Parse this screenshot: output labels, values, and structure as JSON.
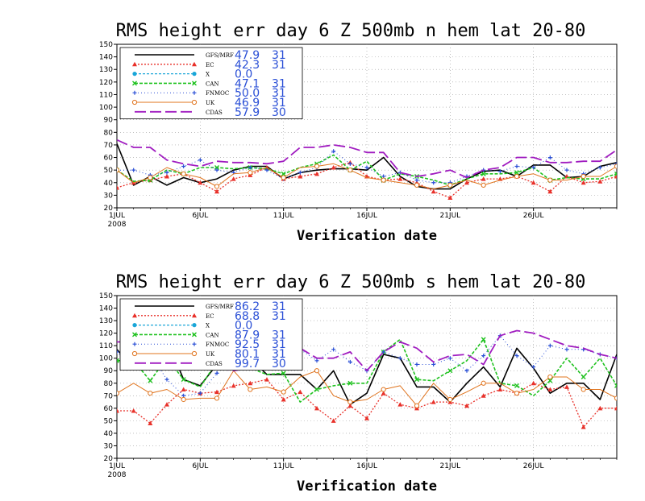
{
  "colors": {
    "GFS": "#000000",
    "EC": "#e8312a",
    "X": "#1aa6d8",
    "CAN": "#1fc21f",
    "FNMOC": "#2a4fd6",
    "UK": "#e0741e",
    "CDAS": "#a01cc0",
    "stats": "#2a4fd6"
  },
  "markers": {
    "GFS": "none",
    "EC": "triangle",
    "X": "circle",
    "CAN": "x",
    "FNMOC": "plus",
    "UK": "open-circle",
    "CDAS": "none"
  },
  "chart_data": [
    {
      "type": "line",
      "title": "RMS height err   day 6   Z 500mb   n hem   lat 20-80",
      "xlabel": "Verification date",
      "ylabel": "",
      "ylim": [
        20,
        150
      ],
      "yticks": [
        20,
        30,
        40,
        50,
        60,
        70,
        80,
        90,
        100,
        110,
        120,
        130,
        140,
        150
      ],
      "x_tick_labels": [
        "1JUL",
        "6JUL",
        "11JUL",
        "16JUL",
        "21JUL",
        "26JUL"
      ],
      "x_tick_days": [
        1,
        6,
        11,
        16,
        21,
        26
      ],
      "x_year_label": "2008",
      "xlim": [
        1,
        31
      ],
      "grid": true,
      "legend": [
        {
          "key": "GFS",
          "label": "GFS/MRF",
          "mean": "47.9",
          "count": "31"
        },
        {
          "key": "EC",
          "label": "EC",
          "mean": "42.3",
          "count": "31"
        },
        {
          "key": "X",
          "label": "X",
          "mean": "0.0",
          "count": ""
        },
        {
          "key": "CAN",
          "label": "CAN",
          "mean": "47.1",
          "count": "31"
        },
        {
          "key": "FNMOC",
          "label": "FNMOC",
          "mean": "50.0",
          "count": "31"
        },
        {
          "key": "UK",
          "label": "UK",
          "mean": "46.9",
          "count": "31"
        },
        {
          "key": "CDAS",
          "label": "CDAS",
          "mean": "57.9",
          "count": "30"
        }
      ],
      "x": [
        1,
        2,
        3,
        4,
        5,
        6,
        7,
        8,
        9,
        10,
        11,
        12,
        13,
        14,
        15,
        16,
        17,
        18,
        19,
        20,
        21,
        22,
        23,
        24,
        25,
        26,
        27,
        28,
        29,
        30,
        31
      ],
      "series": [
        {
          "name": "GFS/MRF",
          "key": "GFS",
          "values": [
            71,
            38,
            45,
            38,
            44,
            40,
            43,
            50,
            53,
            53,
            43,
            48,
            50,
            51,
            51,
            50,
            60,
            45,
            37,
            35,
            35,
            43,
            49,
            50,
            45,
            54,
            54,
            44,
            45,
            53,
            56
          ]
        },
        {
          "name": "EC",
          "key": "EC",
          "values": [
            36,
            40,
            42,
            45,
            47,
            40,
            33,
            43,
            46,
            52,
            43,
            45,
            47,
            52,
            56,
            45,
            42,
            43,
            40,
            33,
            28,
            40,
            43,
            43,
            45,
            40,
            33,
            45,
            40,
            41,
            45
          ]
        },
        {
          "name": "CAN",
          "key": "CAN",
          "values": [
            50,
            41,
            42,
            50,
            47,
            52,
            52,
            51,
            52,
            51,
            47,
            52,
            55,
            62,
            50,
            57,
            42,
            47,
            45,
            42,
            38,
            43,
            47,
            47,
            48,
            52,
            42,
            44,
            43,
            43,
            47
          ]
        },
        {
          "name": "FNMOC",
          "key": "FNMOC",
          "values": [
            50,
            50,
            46,
            48,
            53,
            58,
            50,
            48,
            52,
            50,
            43,
            48,
            52,
            65,
            55,
            52,
            45,
            48,
            42,
            40,
            40,
            45,
            50,
            49,
            53,
            52,
            60,
            50,
            47,
            52,
            55
          ]
        },
        {
          "name": "UK",
          "key": "UK",
          "values": [
            50,
            40,
            44,
            52,
            47,
            44,
            37,
            47,
            48,
            52,
            44,
            52,
            53,
            55,
            50,
            44,
            42,
            40,
            38,
            35,
            38,
            42,
            38,
            42,
            45,
            47,
            42,
            42,
            45,
            45,
            53
          ]
        },
        {
          "name": "CDAS",
          "key": "CDAS",
          "values": [
            74,
            68,
            68,
            58,
            55,
            53,
            57,
            56,
            56,
            55,
            57,
            68,
            68,
            70,
            68,
            64,
            64,
            48,
            45,
            47,
            50,
            44,
            50,
            52,
            60,
            60,
            56,
            56,
            57,
            57,
            66
          ]
        }
      ]
    },
    {
      "type": "line",
      "title": "RMS height err   day 6   Z 500mb   s hem   lat 20-80",
      "xlabel": "Verification date",
      "ylabel": "",
      "ylim": [
        20,
        150
      ],
      "yticks": [
        20,
        30,
        40,
        50,
        60,
        70,
        80,
        90,
        100,
        110,
        120,
        130,
        140,
        150
      ],
      "x_tick_labels": [
        "1JUL",
        "6JUL",
        "11JUL",
        "16JUL",
        "21JUL",
        "26JUL"
      ],
      "x_tick_days": [
        1,
        6,
        11,
        16,
        21,
        26
      ],
      "x_year_label": "2008",
      "xlim": [
        1,
        31
      ],
      "grid": true,
      "legend": [
        {
          "key": "GFS",
          "label": "GFS/MRF",
          "mean": "86.2",
          "count": "31"
        },
        {
          "key": "EC",
          "label": "EC",
          "mean": "68.8",
          "count": "31"
        },
        {
          "key": "X",
          "label": "X",
          "mean": "0.0",
          "count": ""
        },
        {
          "key": "CAN",
          "label": "CAN",
          "mean": "87.9",
          "count": "31"
        },
        {
          "key": "FNMOC",
          "label": "FNMOC",
          "mean": "92.5",
          "count": "31"
        },
        {
          "key": "UK",
          "label": "UK",
          "mean": "80.1",
          "count": "31"
        },
        {
          "key": "CDAS",
          "label": "CDAS",
          "mean": "99.7",
          "count": "30"
        }
      ],
      "x": [
        1,
        2,
        3,
        4,
        5,
        6,
        7,
        8,
        9,
        10,
        11,
        12,
        13,
        14,
        15,
        16,
        17,
        18,
        19,
        20,
        21,
        22,
        23,
        24,
        25,
        26,
        27,
        28,
        29,
        30,
        31
      ],
      "series": [
        {
          "name": "GFS/MRF",
          "key": "GFS",
          "values": [
            107,
            92,
            92,
            115,
            83,
            78,
            95,
            110,
            100,
            87,
            87,
            87,
            75,
            90,
            63,
            72,
            103,
            100,
            77,
            77,
            65,
            80,
            93,
            77,
            108,
            92,
            72,
            80,
            80,
            67,
            103
          ]
        },
        {
          "name": "EC",
          "key": "EC",
          "values": [
            58,
            58,
            48,
            63,
            75,
            72,
            73,
            78,
            80,
            83,
            67,
            73,
            60,
            50,
            62,
            52,
            72,
            63,
            60,
            65,
            65,
            62,
            70,
            75,
            72,
            80,
            75,
            77,
            45,
            60,
            60
          ]
        },
        {
          "name": "CAN",
          "key": "CAN",
          "values": [
            98,
            98,
            82,
            100,
            83,
            77,
            97,
            97,
            92,
            87,
            88,
            65,
            75,
            78,
            80,
            80,
            105,
            115,
            83,
            82,
            90,
            98,
            115,
            80,
            78,
            70,
            82,
            100,
            85,
            100,
            78
          ]
        },
        {
          "name": "FNMOC",
          "key": "FNMOC",
          "values": [
            105,
            92,
            103,
            83,
            70,
            72,
            88,
            108,
            100,
            95,
            92,
            107,
            98,
            107,
            97,
            90,
            105,
            100,
            95,
            95,
            100,
            90,
            102,
            118,
            102,
            93,
            110,
            107,
            107,
            103,
            100
          ]
        },
        {
          "name": "UK",
          "key": "UK",
          "values": [
            72,
            80,
            72,
            75,
            67,
            68,
            68,
            90,
            75,
            77,
            73,
            85,
            90,
            70,
            65,
            67,
            75,
            78,
            62,
            80,
            67,
            73,
            80,
            80,
            72,
            75,
            85,
            85,
            75,
            75,
            68
          ]
        },
        {
          "name": "CDAS",
          "key": "CDAS",
          "values": [
            113,
            113,
            102,
            97,
            95,
            93,
            92,
            90,
            92,
            92,
            92,
            108,
            100,
            100,
            105,
            90,
            105,
            113,
            108,
            97,
            102,
            103,
            95,
            118,
            122,
            120,
            115,
            110,
            108,
            103,
            100
          ]
        }
      ]
    }
  ]
}
